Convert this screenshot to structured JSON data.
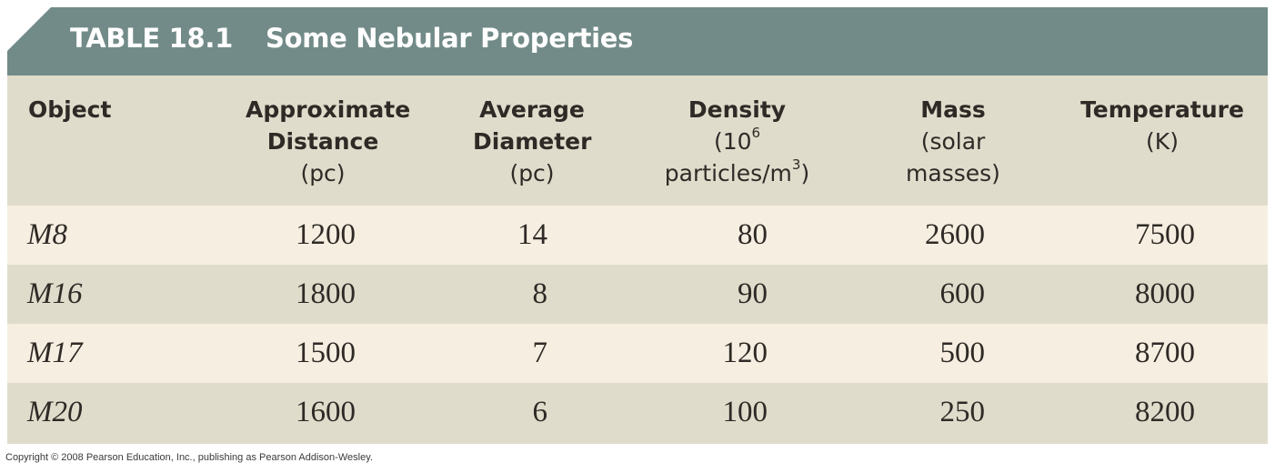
{
  "title": {
    "number": "TABLE 18.1",
    "name": "Some Nebular Properties"
  },
  "headers": {
    "object": {
      "line1": "Object"
    },
    "distance": {
      "line1": "Approximate",
      "line2": "Distance",
      "line3": "(pc)"
    },
    "diameter": {
      "line1": "Average",
      "line2": "Diameter",
      "line3": "(pc)"
    },
    "density": {
      "line1": "Density",
      "line2_prefix": "(10",
      "line2_sup": "6",
      "line3_prefix": "particles/m",
      "line3_sup": "3",
      "line3_suffix": ")"
    },
    "mass": {
      "line1": "Mass",
      "line2": "(solar",
      "line3": "masses)"
    },
    "temperature": {
      "line1": "Temperature",
      "line2": "(K)"
    }
  },
  "rows": [
    {
      "object": "M8",
      "distance": "1200",
      "diameter": "14",
      "density": "80",
      "mass": "2600",
      "temperature": "7500"
    },
    {
      "object": "M16",
      "distance": "1800",
      "diameter": "8",
      "density": "90",
      "mass": "600",
      "temperature": "8000"
    },
    {
      "object": "M17",
      "distance": "1500",
      "diameter": "7",
      "density": "120",
      "mass": "500",
      "temperature": "8700"
    },
    {
      "object": "M20",
      "distance": "1600",
      "diameter": "6",
      "density": "100",
      "mass": "250",
      "temperature": "8200"
    }
  ],
  "copyright": "Copyright © 2008 Pearson Education, Inc., publishing as Pearson Addison-Wesley.",
  "colors": {
    "title_bar": "#728b88",
    "header_bg": "#dfdccb",
    "row_light": "#f6efe1",
    "row_dark": "#dfdccb",
    "text": "#2f2a26"
  }
}
